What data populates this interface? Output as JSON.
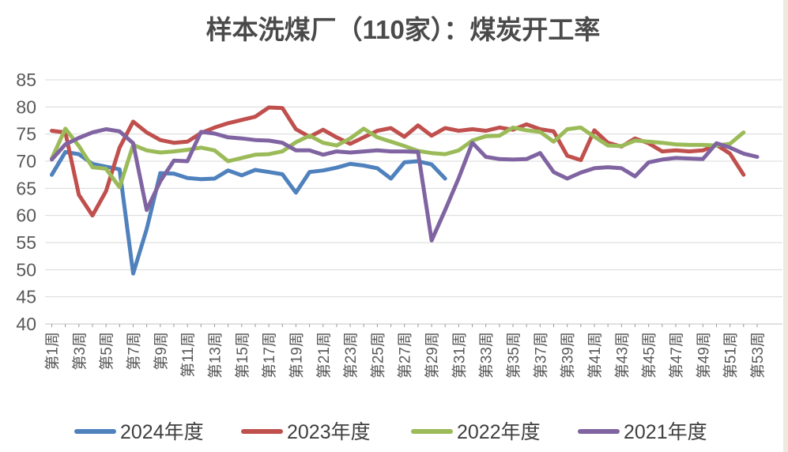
{
  "page": {
    "background_color": "#ffffff",
    "edge_strip_color": "#efeadd"
  },
  "chart_data": {
    "type": "line",
    "title": "样本洗煤厂（110家）：煤炭开工率",
    "title_color": "#4a4a4a",
    "xlabel": "",
    "ylabel": "",
    "ylim": [
      40,
      85
    ],
    "y_tick_step": 5,
    "y_tick_labels": [
      "40",
      "45",
      "50",
      "55",
      "60",
      "65",
      "70",
      "75",
      "80",
      "85"
    ],
    "weeks_total": 53,
    "x_tick_labels": [
      "第1周",
      "第3周",
      "第5周",
      "第7周",
      "第9周",
      "第11周",
      "第13周",
      "第15周",
      "第17周",
      "第19周",
      "第21周",
      "第23周",
      "第25周",
      "第27周",
      "第29周",
      "第31周",
      "第33周",
      "第35周",
      "第37周",
      "第39周",
      "第41周",
      "第43周",
      "第45周",
      "第47周",
      "第49周",
      "第51周",
      "第53周"
    ],
    "x_label_interval": 2,
    "grid": true,
    "gridline_color": "#d9d9d9",
    "axis_line_color": "#c3c3c3",
    "tick_color": "#9a9a9a",
    "axis_label_color": "#595959",
    "legend_position": "bottom",
    "legend_text_color": "#3f3f3f",
    "series": [
      {
        "name": "2024年度",
        "color": "#4F81BD",
        "start_week": 1,
        "values": [
          67.5,
          71.7,
          71.3,
          69.5,
          69.0,
          68.5,
          49.3,
          57.5,
          67.8,
          67.7,
          66.9,
          66.7,
          66.8,
          68.3,
          67.4,
          68.4,
          68.0,
          67.6,
          64.2,
          68.0,
          68.3,
          68.8,
          69.5,
          69.2,
          68.7,
          66.8,
          69.8,
          70.0,
          69.4,
          66.8
        ]
      },
      {
        "name": "2023年度",
        "color": "#C0504D",
        "start_week": 1,
        "values": [
          75.6,
          75.3,
          63.8,
          60.0,
          64.5,
          72.5,
          77.3,
          75.3,
          73.9,
          73.4,
          73.6,
          75.2,
          76.2,
          77.0,
          77.6,
          78.2,
          79.9,
          79.8,
          75.9,
          74.5,
          75.8,
          74.4,
          73.2,
          74.4,
          75.6,
          76.1,
          74.5,
          76.6,
          74.7,
          76.1,
          75.6,
          75.9,
          75.6,
          76.2,
          75.8,
          76.8,
          75.9,
          75.5,
          71.0,
          70.2,
          75.7,
          73.4,
          72.7,
          74.2,
          73.3,
          71.8,
          72.0,
          71.8,
          72.0,
          73.0,
          71.4,
          67.5
        ]
      },
      {
        "name": "2022年度",
        "color": "#9BBB59",
        "start_week": 1,
        "values": [
          70.5,
          76.0,
          72.8,
          68.9,
          68.6,
          65.2,
          73.0,
          72.0,
          71.6,
          71.8,
          72.1,
          72.5,
          72.0,
          70.0,
          70.6,
          71.2,
          71.3,
          71.8,
          73.5,
          74.7,
          73.4,
          72.9,
          74.2,
          76.0,
          74.4,
          73.6,
          72.8,
          71.9,
          71.5,
          71.3,
          72.0,
          73.8,
          74.6,
          74.7,
          76.2,
          75.7,
          75.4,
          73.6,
          75.9,
          76.2,
          74.5,
          72.9,
          72.8,
          73.8,
          73.6,
          73.4,
          73.1,
          73.0,
          73.0,
          72.9,
          73.2,
          75.3
        ]
      },
      {
        "name": "2021年度",
        "color": "#8064A2",
        "start_week": 1,
        "values": [
          70.3,
          73.1,
          74.3,
          75.3,
          75.9,
          75.5,
          73.3,
          61.0,
          66.3,
          70.1,
          70.0,
          75.4,
          75.1,
          74.4,
          74.2,
          73.9,
          73.8,
          73.4,
          72.0,
          72.0,
          71.2,
          71.8,
          71.6,
          71.8,
          72.0,
          71.8,
          71.8,
          71.7,
          55.4,
          61.0,
          66.9,
          73.4,
          70.8,
          70.4,
          70.3,
          70.4,
          71.5,
          68.0,
          66.8,
          67.9,
          68.7,
          68.9,
          68.7,
          67.2,
          69.8,
          70.3,
          70.6,
          70.5,
          70.4,
          73.3,
          72.5,
          71.4,
          70.8
        ]
      }
    ]
  }
}
